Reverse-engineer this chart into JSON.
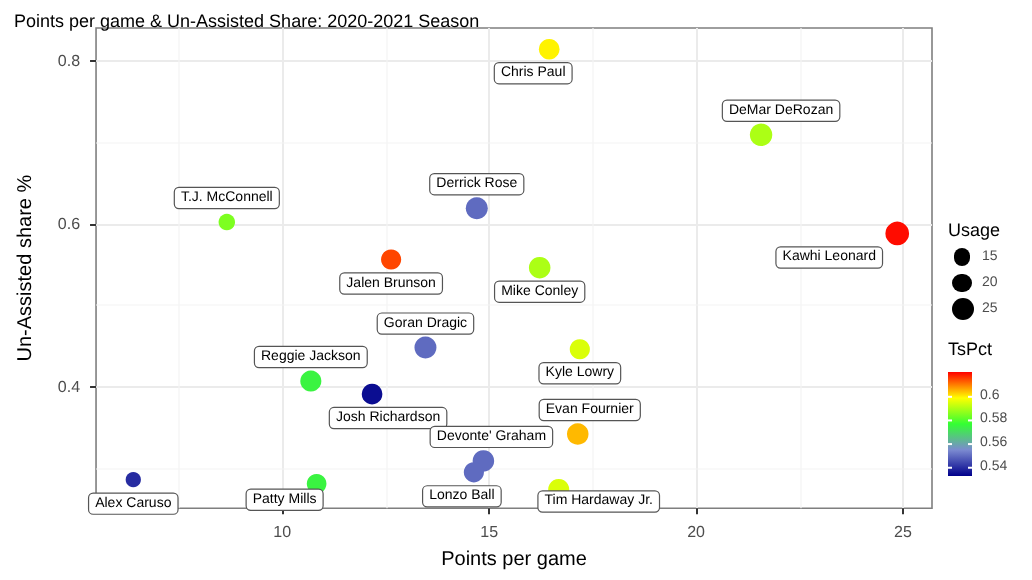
{
  "chart_data": {
    "type": "bubble",
    "title": "Points per game & Un-Assisted Share: 2020-2021 Season",
    "xlabel": "Points per game",
    "ylabel": "Un-Assisted share %",
    "legend_title": "Usage",
    "clabel": "TsPct",
    "x": [
      16.45,
      21.57,
      14.7,
      8.66,
      24.86,
      12.63,
      16.22,
      13.46,
      17.19,
      10.69,
      12.17,
      17.14,
      14.86,
      14.63,
      6.4,
      10.83,
      16.68
    ],
    "values": [
      0.814,
      0.709,
      0.619,
      0.602,
      0.588,
      0.556,
      0.546,
      0.448,
      0.446,
      0.407,
      0.391,
      0.342,
      0.309,
      0.295,
      0.286,
      0.281,
      0.274
    ],
    "sizes": [
      22,
      26,
      25,
      14,
      29,
      21,
      24,
      25,
      21,
      23,
      22,
      24,
      24,
      21,
      12,
      20,
      23
    ],
    "cvalues": [
      0.6,
      0.59,
      0.55,
      0.585,
      0.62,
      0.615,
      0.59,
      0.55,
      0.595,
      0.575,
      0.535,
      0.605,
      0.55,
      0.55,
      0.54,
      0.575,
      0.595
    ],
    "size_legend": [
      15,
      20,
      25
    ],
    "clim": [
      0.533,
      0.621
    ],
    "cticks": [
      0.54,
      0.56,
      0.58,
      0.6
    ],
    "xlim": [
      5.5,
      25.7
    ],
    "xticks": [
      10,
      15,
      20,
      25
    ],
    "ylim": [
      0.251,
      0.84
    ],
    "yticks": [
      0.4,
      0.6,
      0.8
    ],
    "grid": true,
    "annotations": [
      {
        "text": "Chris Paul",
        "x": 16.45,
        "y": 0.814
      },
      {
        "text": "DeMar DeRozan",
        "x": 21.57,
        "y": 0.709
      },
      {
        "text": "Derrick Rose",
        "x": 14.7,
        "y": 0.619
      },
      {
        "text": "T.J. McConnell",
        "x": 8.66,
        "y": 0.602
      },
      {
        "text": "Kawhi Leonard",
        "x": 24.86,
        "y": 0.588
      },
      {
        "text": "Jalen Brunson",
        "x": 12.63,
        "y": 0.556
      },
      {
        "text": "Mike Conley",
        "x": 16.22,
        "y": 0.546
      },
      {
        "text": "Goran Dragic",
        "x": 13.46,
        "y": 0.448
      },
      {
        "text": "Kyle Lowry",
        "x": 17.19,
        "y": 0.446
      },
      {
        "text": "Reggie Jackson",
        "x": 10.69,
        "y": 0.407
      },
      {
        "text": "Josh Richardson",
        "x": 12.17,
        "y": 0.391
      },
      {
        "text": "Evan Fournier",
        "x": 17.14,
        "y": 0.342
      },
      {
        "text": "Devonte' Graham",
        "x": 14.86,
        "y": 0.309
      },
      {
        "text": "Lonzo Ball",
        "x": 14.63,
        "y": 0.295
      },
      {
        "text": "Alex Caruso",
        "x": 6.4,
        "y": 0.286
      },
      {
        "text": "Patty Mills",
        "x": 10.83,
        "y": 0.281
      },
      {
        "text": "Tim Hardaway Jr.",
        "x": 16.68,
        "y": 0.274
      }
    ]
  }
}
